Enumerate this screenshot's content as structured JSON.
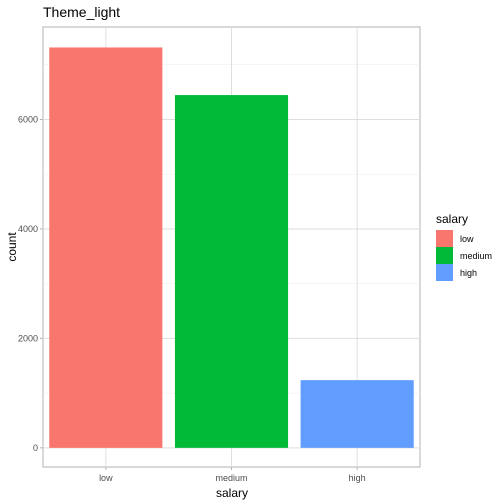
{
  "chart_data": {
    "type": "bar",
    "title": "Theme_light",
    "xlabel": "salary",
    "ylabel": "count",
    "categories": [
      "low",
      "medium",
      "high"
    ],
    "values": [
      7316,
      6446,
      1237
    ],
    "colors": [
      "#F8766D",
      "#00BA38",
      "#619CFF"
    ],
    "ylim": [
      -350,
      7690
    ],
    "yticks": [
      0,
      2000,
      4000,
      6000
    ],
    "grid": true,
    "legend": {
      "title": "salary",
      "position": "right",
      "items": [
        "low",
        "medium",
        "high"
      ]
    }
  }
}
